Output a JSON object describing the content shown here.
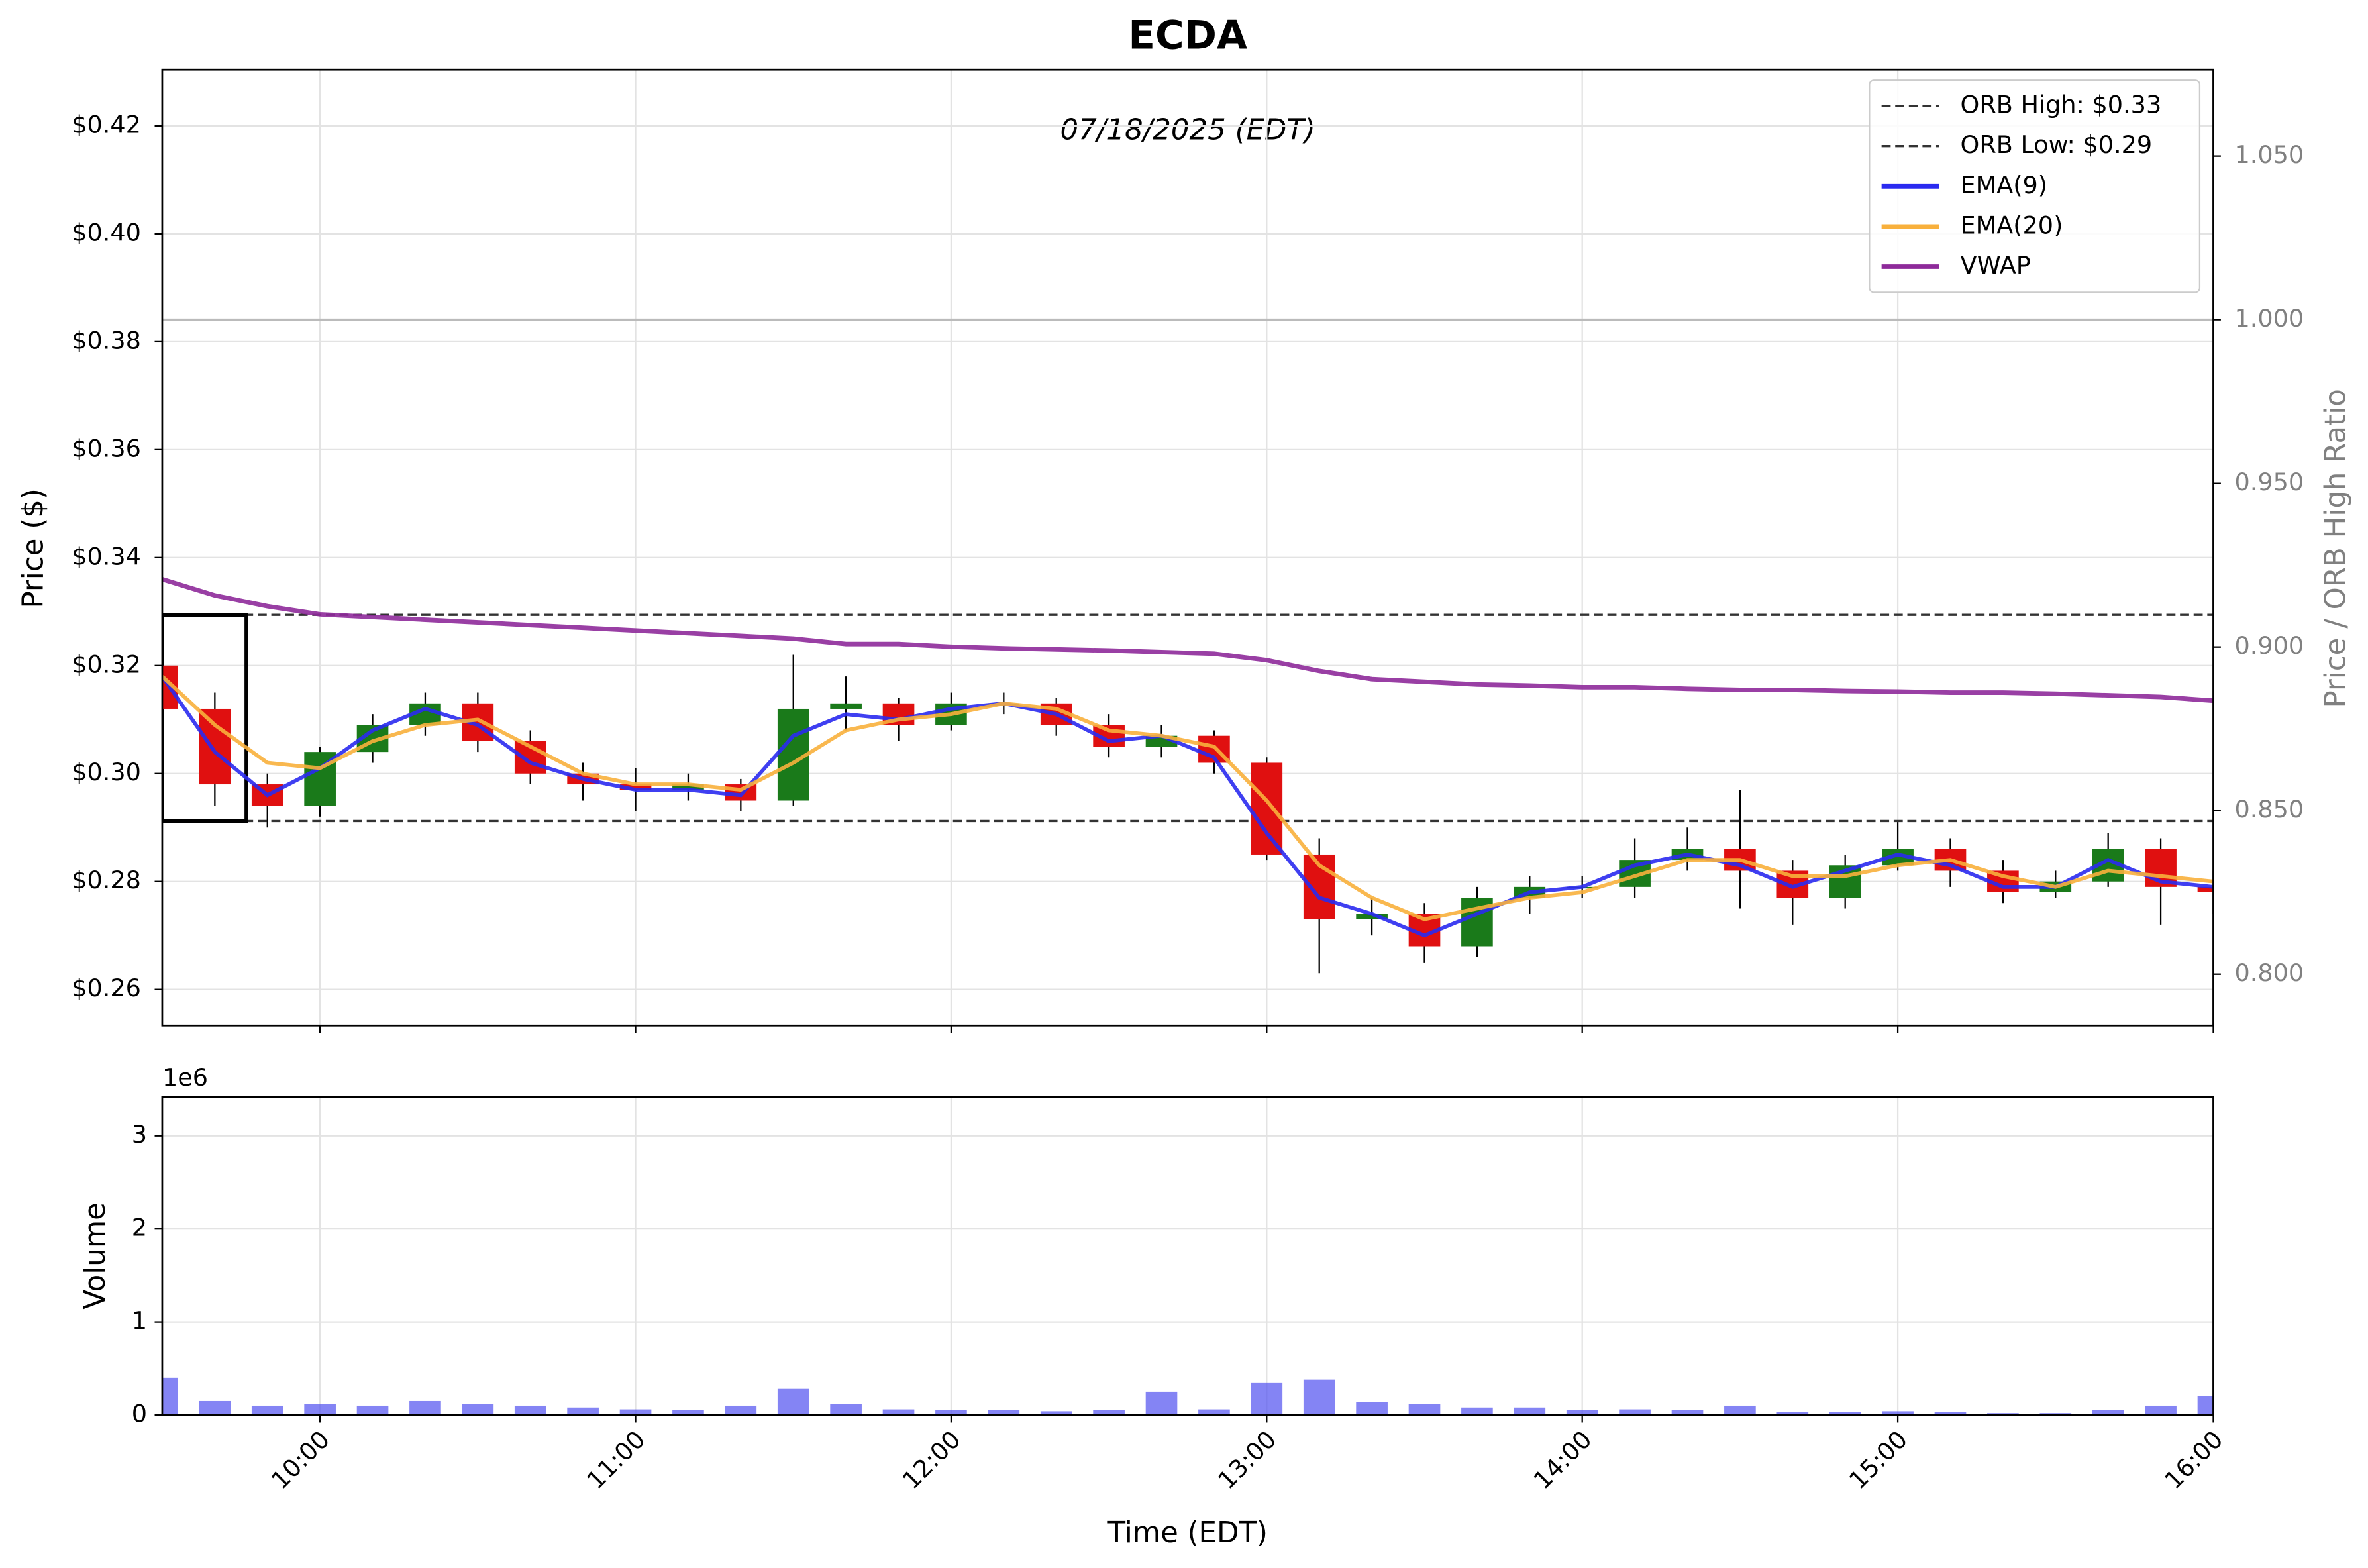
{
  "chart_data": {
    "type": "candlestick",
    "title": "ECDA",
    "subtitle": "07/18/2025 (EDT)",
    "xlabel": "Time (EDT)",
    "ylabel": "Price ($)",
    "y2label": "Price / ORB High Ratio",
    "x": [
      "09:30",
      "09:40",
      "09:50",
      "10:00",
      "10:10",
      "10:20",
      "10:30",
      "10:40",
      "10:50",
      "11:00",
      "11:10",
      "11:20",
      "11:30",
      "11:40",
      "11:50",
      "12:00",
      "12:10",
      "12:20",
      "12:30",
      "12:40",
      "12:50",
      "13:00",
      "13:10",
      "13:20",
      "13:30",
      "13:40",
      "13:50",
      "14:00",
      "14:10",
      "14:20",
      "14:30",
      "14:40",
      "14:50",
      "15:00",
      "15:10",
      "15:20",
      "15:30",
      "15:40",
      "15:50",
      "16:00"
    ],
    "open": [
      0.32,
      0.312,
      0.298,
      0.294,
      0.304,
      0.309,
      0.313,
      0.306,
      0.3,
      0.298,
      0.297,
      0.298,
      0.295,
      0.312,
      0.313,
      0.309,
      0.313,
      0.313,
      0.309,
      0.305,
      0.307,
      0.302,
      0.285,
      0.273,
      0.274,
      0.268,
      0.277,
      0.279,
      0.279,
      0.284,
      0.286,
      0.282,
      0.277,
      0.283,
      0.286,
      0.282,
      0.278,
      0.28,
      0.286,
      0.279
    ],
    "high": [
      0.323,
      0.315,
      0.3,
      0.305,
      0.311,
      0.315,
      0.315,
      0.308,
      0.302,
      0.301,
      0.3,
      0.299,
      0.322,
      0.318,
      0.314,
      0.315,
      0.315,
      0.314,
      0.311,
      0.309,
      0.308,
      0.303,
      0.288,
      0.277,
      0.276,
      0.279,
      0.281,
      0.281,
      0.288,
      0.29,
      0.297,
      0.284,
      0.285,
      0.291,
      0.288,
      0.284,
      0.282,
      0.289,
      0.288,
      0.282
    ],
    "low": [
      0.31,
      0.294,
      0.29,
      0.292,
      0.302,
      0.307,
      0.304,
      0.298,
      0.295,
      0.293,
      0.295,
      0.293,
      0.294,
      0.308,
      0.306,
      0.308,
      0.311,
      0.307,
      0.303,
      0.303,
      0.3,
      0.284,
      0.263,
      0.27,
      0.265,
      0.266,
      0.274,
      0.277,
      0.277,
      0.282,
      0.275,
      0.272,
      0.275,
      0.282,
      0.279,
      0.276,
      0.277,
      0.279,
      0.272,
      0.274
    ],
    "close": [
      0.312,
      0.298,
      0.294,
      0.304,
      0.309,
      0.313,
      0.306,
      0.3,
      0.298,
      0.297,
      0.298,
      0.295,
      0.312,
      0.313,
      0.309,
      0.313,
      0.313,
      0.309,
      0.305,
      0.307,
      0.302,
      0.285,
      0.273,
      0.274,
      0.268,
      0.277,
      0.279,
      0.279,
      0.284,
      0.286,
      0.282,
      0.277,
      0.283,
      0.286,
      0.282,
      0.278,
      0.28,
      0.286,
      0.279,
      0.278
    ],
    "up_color": "#1a7a1a",
    "down_color": "#e01010",
    "series": [
      {
        "name": "EMA(9)",
        "color": "#2a2af0",
        "values": [
          0.318,
          0.304,
          0.296,
          0.301,
          0.308,
          0.312,
          0.309,
          0.302,
          0.299,
          0.297,
          0.297,
          0.296,
          0.307,
          0.311,
          0.31,
          0.312,
          0.313,
          0.311,
          0.306,
          0.307,
          0.303,
          0.289,
          0.277,
          0.274,
          0.27,
          0.274,
          0.278,
          0.279,
          0.283,
          0.285,
          0.283,
          0.279,
          0.282,
          0.285,
          0.283,
          0.279,
          0.279,
          0.284,
          0.28,
          0.279
        ]
      },
      {
        "name": "EMA(20)",
        "color": "#f8b03c",
        "values": [
          0.318,
          0.309,
          0.302,
          0.301,
          0.306,
          0.309,
          0.31,
          0.305,
          0.3,
          0.298,
          0.298,
          0.297,
          0.302,
          0.308,
          0.31,
          0.311,
          0.313,
          0.312,
          0.308,
          0.307,
          0.305,
          0.295,
          0.283,
          0.277,
          0.273,
          0.275,
          0.277,
          0.278,
          0.281,
          0.284,
          0.284,
          0.281,
          0.281,
          0.283,
          0.284,
          0.281,
          0.279,
          0.282,
          0.281,
          0.28
        ]
      },
      {
        "name": "VWAP",
        "color": "#8e2a9a",
        "values": [
          0.336,
          0.333,
          0.331,
          0.3295,
          0.329,
          0.3285,
          0.328,
          0.3275,
          0.327,
          0.3265,
          0.326,
          0.3255,
          0.325,
          0.324,
          0.324,
          0.3235,
          0.3232,
          0.323,
          0.3228,
          0.3225,
          0.3222,
          0.321,
          0.319,
          0.3175,
          0.317,
          0.3165,
          0.3163,
          0.316,
          0.316,
          0.3157,
          0.3155,
          0.3155,
          0.3153,
          0.3152,
          0.315,
          0.315,
          0.3148,
          0.3145,
          0.3142,
          0.3135
        ]
      }
    ],
    "hlines": [
      {
        "name": "ORB High: $0.33",
        "value": 0.3294,
        "color": "#333333"
      },
      {
        "name": "ORB Low: $0.29",
        "value": 0.2912,
        "color": "#333333"
      }
    ],
    "orb_box": {
      "start": "09:30",
      "end": "09:46"
    },
    "xlim": [
      "09:30",
      "16:00"
    ],
    "xticks": [
      "10:00",
      "11:00",
      "12:00",
      "13:00",
      "14:00",
      "15:00",
      "16:00"
    ],
    "ylim": [
      0.2533,
      0.4304
    ],
    "yticks": [
      {
        "value": 0.26,
        "label": "$0.26"
      },
      {
        "value": 0.28,
        "label": "$0.28"
      },
      {
        "value": 0.3,
        "label": "$0.30"
      },
      {
        "value": 0.32,
        "label": "$0.32"
      },
      {
        "value": 0.34,
        "label": "$0.34"
      },
      {
        "value": 0.36,
        "label": "$0.36"
      },
      {
        "value": 0.38,
        "label": "$0.38"
      },
      {
        "value": 0.4,
        "label": "$0.40"
      },
      {
        "value": 0.42,
        "label": "$0.42"
      }
    ],
    "y2lim": [
      0.7843,
      1.0764
    ],
    "y2ticks": [
      {
        "value": 0.8,
        "label": "0.800"
      },
      {
        "value": 0.85,
        "label": "0.850"
      },
      {
        "value": 0.9,
        "label": "0.900"
      },
      {
        "value": 0.95,
        "label": "0.950"
      },
      {
        "value": 1.0,
        "label": "1.000"
      },
      {
        "value": 1.05,
        "label": "1.050"
      }
    ],
    "y2_reference": 1.0,
    "grid": true,
    "legend": "upper right",
    "volume": {
      "ylabel": "Volume",
      "offset_label": "1e6",
      "color": "#5050f0",
      "values": [
        0.4,
        0.15,
        0.1,
        0.12,
        0.1,
        0.15,
        0.12,
        0.1,
        0.08,
        0.06,
        0.05,
        0.1,
        0.28,
        0.12,
        0.06,
        0.05,
        0.05,
        0.04,
        0.05,
        0.25,
        0.06,
        0.35,
        0.38,
        0.14,
        0.12,
        0.08,
        0.08,
        0.05,
        0.06,
        0.05,
        0.1,
        0.03,
        0.03,
        0.04,
        0.03,
        0.02,
        0.02,
        0.05,
        0.1,
        0.2
      ],
      "ylim": [
        0,
        3.42
      ],
      "yticks": [
        0,
        1,
        2,
        3
      ]
    }
  }
}
